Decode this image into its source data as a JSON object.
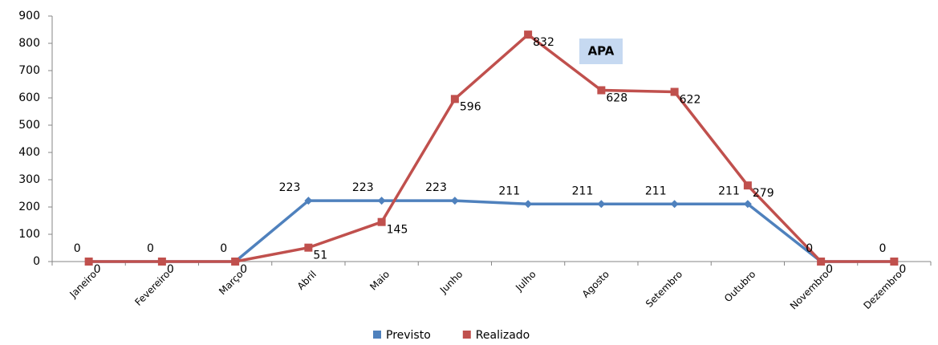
{
  "chart_data": {
    "type": "line",
    "title": "APA",
    "categories": [
      "Janeiro",
      "Fevereiro",
      "Março",
      "Abril",
      "Maio",
      "Junho",
      "Julho",
      "Agosto",
      "Setembro",
      "Outubro",
      "Novembro",
      "Dezembro"
    ],
    "series": [
      {
        "name": "Previsto",
        "color": "#4f81bd",
        "values": [
          0,
          0,
          0,
          223,
          223,
          223,
          211,
          211,
          211,
          211,
          0,
          0
        ]
      },
      {
        "name": "Realizado",
        "color": "#c0504d",
        "values": [
          0,
          0,
          0,
          51,
          145,
          596,
          832,
          628,
          622,
          279,
          0,
          0
        ]
      }
    ],
    "ylim": [
      0,
      900
    ],
    "yticks": [
      0,
      100,
      200,
      300,
      400,
      500,
      600,
      700,
      800,
      900
    ],
    "grid": false,
    "legend": "bottom"
  }
}
